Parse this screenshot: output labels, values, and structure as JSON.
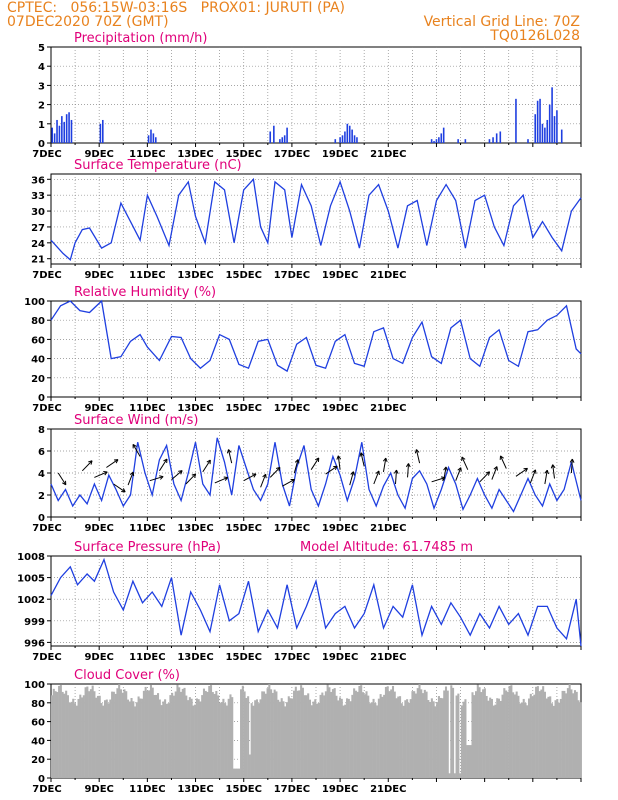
{
  "header": {
    "line1_left": "CPTEC:   056:15W-03:16S   PROX01: JURUTI (PA)",
    "line2_left": "07DEC2020 70Z (GMT)",
    "line2_right": "Vertical Grid Line: 70Z",
    "line3_right": "TQ0126L028"
  },
  "colors": {
    "header": "#e8821e",
    "title": "#e0007a",
    "series": "#1f3fe0",
    "cloud": "#b0b0b0"
  },
  "x_labels": [
    "7DEC",
    "9DEC",
    "11DEC",
    "13DEC",
    "15DEC",
    "17DEC",
    "19DEC",
    "21DEC"
  ],
  "chart_data": [
    {
      "type": "bar",
      "title": "Precipitation (mm/h)",
      "ylim": [
        0,
        5
      ],
      "yticks": [
        "0",
        "1",
        "2",
        "3",
        "4",
        "5"
      ],
      "x": [
        0.05,
        0.15,
        0.25,
        0.35,
        0.45,
        0.55,
        0.65,
        0.75,
        0.85,
        2.05,
        2.15,
        4.05,
        4.15,
        4.25,
        4.35,
        9.1,
        9.25,
        9.5,
        9.6,
        9.7,
        9.8,
        11.8,
        12.0,
        12.1,
        12.2,
        12.3,
        12.4,
        12.5,
        12.6,
        12.7,
        15.8,
        15.9,
        16.0,
        16.1,
        16.2,
        16.3,
        16.9,
        17.2,
        18.2,
        18.35,
        18.5,
        18.65,
        19.3,
        19.8,
        20.1,
        20.2,
        20.3,
        20.4,
        20.5,
        20.6,
        20.7,
        20.8,
        20.9,
        21.0,
        21.2
      ],
      "values": [
        0.8,
        0.5,
        1.2,
        0.9,
        1.4,
        1.1,
        1.5,
        1.6,
        1.2,
        1.0,
        1.2,
        0.4,
        0.7,
        0.5,
        0.3,
        0.6,
        0.9,
        0.2,
        0.3,
        0.4,
        0.8,
        0.2,
        0.3,
        0.4,
        0.6,
        1.0,
        0.9,
        0.7,
        0.4,
        0.3,
        0.2,
        0.1,
        0.2,
        0.3,
        0.5,
        0.8,
        0.2,
        0.2,
        0.2,
        0.3,
        0.5,
        0.6,
        2.3,
        0.2,
        1.5,
        2.2,
        2.3,
        1.0,
        0.8,
        1.2,
        2.0,
        2.9,
        1.4,
        1.7,
        0.7
      ]
    },
    {
      "type": "line",
      "title": "Surface Temperature (nC)",
      "ylim": [
        20,
        37
      ],
      "yticks": [
        "21",
        "24",
        "27",
        "30",
        "33",
        "36"
      ],
      "x": [
        0,
        0.5,
        0.8,
        1.0,
        1.3,
        1.6,
        2.1,
        2.5,
        2.9,
        3.3,
        3.7,
        4.0,
        4.4,
        4.9,
        5.3,
        5.7,
        6.0,
        6.4,
        6.8,
        7.2,
        7.6,
        8.0,
        8.4,
        8.7,
        9.0,
        9.3,
        9.7,
        10.0,
        10.4,
        10.8,
        11.2,
        11.6,
        12.0,
        12.4,
        12.8,
        13.2,
        13.6,
        14.0,
        14.4,
        14.8,
        15.2,
        15.6,
        16.0,
        16.4,
        16.8,
        17.2,
        17.6,
        18.0,
        18.4,
        18.8,
        19.2,
        19.6,
        20.0,
        20.4,
        20.8,
        21.2,
        21.6,
        22.0
      ],
      "values": [
        24.5,
        22,
        20.8,
        24,
        26.5,
        26.8,
        23,
        24,
        31.5,
        28,
        24.5,
        33,
        29,
        23.5,
        33,
        35.5,
        29,
        24,
        35.5,
        34,
        24,
        34,
        36,
        27,
        24,
        35.5,
        34,
        25,
        35,
        31,
        23.5,
        31,
        35.5,
        30,
        23,
        33,
        35,
        30,
        23,
        31,
        32,
        23.5,
        32,
        35,
        32,
        23,
        32,
        33,
        27,
        23.5,
        31,
        33,
        25,
        28,
        25,
        22.5,
        30,
        32.5
      ]
    },
    {
      "type": "line",
      "title": "Relative Humidity (%)",
      "ylim": [
        0,
        100
      ],
      "yticks": [
        "0",
        "20",
        "40",
        "60",
        "80",
        "100"
      ],
      "x": [
        0,
        0.4,
        0.8,
        1.2,
        1.6,
        2.1,
        2.5,
        2.9,
        3.3,
        3.7,
        4.0,
        4.5,
        5.0,
        5.4,
        5.8,
        6.2,
        6.6,
        7.0,
        7.4,
        7.8,
        8.2,
        8.6,
        9.0,
        9.4,
        9.8,
        10.2,
        10.6,
        11.0,
        11.4,
        11.8,
        12.2,
        12.6,
        13.0,
        13.4,
        13.8,
        14.2,
        14.6,
        15.0,
        15.4,
        15.8,
        16.2,
        16.6,
        17.0,
        17.4,
        17.8,
        18.2,
        18.6,
        19.0,
        19.4,
        19.8,
        20.2,
        20.6,
        21.0,
        21.4,
        21.8,
        22.0
      ],
      "values": [
        80,
        95,
        100,
        90,
        88,
        100,
        40,
        42,
        58,
        65,
        52,
        38,
        63,
        62,
        40,
        30,
        38,
        65,
        60,
        34,
        30,
        58,
        60,
        33,
        27,
        55,
        62,
        33,
        30,
        58,
        65,
        35,
        32,
        68,
        72,
        40,
        35,
        62,
        78,
        42,
        35,
        72,
        80,
        40,
        32,
        62,
        70,
        38,
        32,
        68,
        70,
        80,
        85,
        95,
        50,
        45
      ]
    },
    {
      "type": "line",
      "title": "Surface Wind (m/s)",
      "ylim": [
        0,
        8
      ],
      "yticks": [
        "0",
        "2",
        "4",
        "6",
        "8"
      ],
      "x": [
        0,
        0.3,
        0.6,
        0.9,
        1.2,
        1.5,
        1.8,
        2.1,
        2.4,
        2.7,
        3.0,
        3.3,
        3.6,
        3.9,
        4.2,
        4.5,
        4.8,
        5.1,
        5.4,
        5.7,
        6.0,
        6.3,
        6.6,
        6.9,
        7.2,
        7.5,
        7.8,
        8.1,
        8.4,
        8.7,
        9.0,
        9.3,
        9.6,
        9.9,
        10.2,
        10.5,
        10.8,
        11.1,
        11.4,
        11.7,
        12.0,
        12.3,
        12.6,
        12.9,
        13.2,
        13.5,
        13.8,
        14.1,
        14.4,
        14.7,
        15.0,
        15.3,
        15.6,
        15.9,
        16.2,
        16.5,
        16.8,
        17.1,
        17.4,
        17.7,
        18.0,
        18.3,
        18.6,
        18.9,
        19.2,
        19.5,
        19.8,
        20.1,
        20.4,
        20.7,
        21.0,
        21.3,
        21.6,
        22.0
      ],
      "values": [
        3,
        1.5,
        2.5,
        1,
        2,
        1.2,
        3,
        1.5,
        3.8,
        2.5,
        1,
        2,
        6.8,
        4,
        2,
        5.2,
        6.5,
        3,
        1.5,
        4,
        6.8,
        3,
        2,
        7.2,
        5,
        2,
        6.5,
        4.5,
        2.5,
        1.5,
        3,
        6.8,
        3,
        1,
        4.5,
        6.5,
        2.5,
        1,
        3,
        5.5,
        3.8,
        1.5,
        3.5,
        6.8,
        2.5,
        1,
        2.8,
        4,
        2,
        0.8,
        3.5,
        4.2,
        3,
        0.8,
        2.5,
        4.5,
        3,
        0.7,
        2,
        3.5,
        2,
        0.8,
        2.5,
        1.5,
        0.5,
        2,
        3.5,
        2,
        1,
        3,
        1.5,
        2.5,
        5,
        1.5
      ]
    },
    {
      "type": "line",
      "title": "Surface Pressure (hPa)",
      "annotation": "Model Altitude: 61.7485 m",
      "ylim": [
        995.5,
        1008
      ],
      "yticks": [
        "996",
        "999",
        "1002",
        "1005",
        "1008"
      ],
      "x": [
        0,
        0.4,
        0.8,
        1.1,
        1.5,
        1.8,
        2.2,
        2.6,
        3.0,
        3.4,
        3.8,
        4.2,
        4.6,
        5.0,
        5.4,
        5.8,
        6.2,
        6.6,
        7.0,
        7.4,
        7.8,
        8.2,
        8.6,
        9.0,
        9.4,
        9.8,
        10.2,
        10.6,
        11.0,
        11.4,
        11.8,
        12.2,
        12.6,
        13.0,
        13.4,
        13.8,
        14.2,
        14.6,
        15.0,
        15.4,
        15.8,
        16.2,
        16.6,
        17.0,
        17.4,
        17.8,
        18.2,
        18.6,
        19.0,
        19.4,
        19.8,
        20.2,
        20.6,
        21.0,
        21.4,
        21.8,
        22.0
      ],
      "values": [
        1002.5,
        1005,
        1006.5,
        1004,
        1005.5,
        1004.5,
        1007.5,
        1003,
        1000.5,
        1004.5,
        1001.5,
        1003,
        1001,
        1005,
        997,
        1003,
        1000.5,
        997.5,
        1004,
        999,
        1000,
        1004.5,
        997.5,
        1000.5,
        998,
        1004,
        998,
        1001,
        1004.5,
        998,
        1000,
        1001,
        998,
        1000,
        1004,
        998,
        1001,
        999.5,
        1004,
        997,
        1001,
        998.5,
        1001.5,
        999.5,
        997,
        1000,
        998,
        1001,
        998.5,
        1000,
        997,
        1001,
        1001,
        998,
        996.5,
        1002,
        995.5
      ]
    },
    {
      "type": "area",
      "title": "Cloud Cover (%)",
      "ylim": [
        0,
        100
      ],
      "yticks": [
        "0",
        "20",
        "40",
        "60",
        "80",
        "100"
      ]
    }
  ]
}
